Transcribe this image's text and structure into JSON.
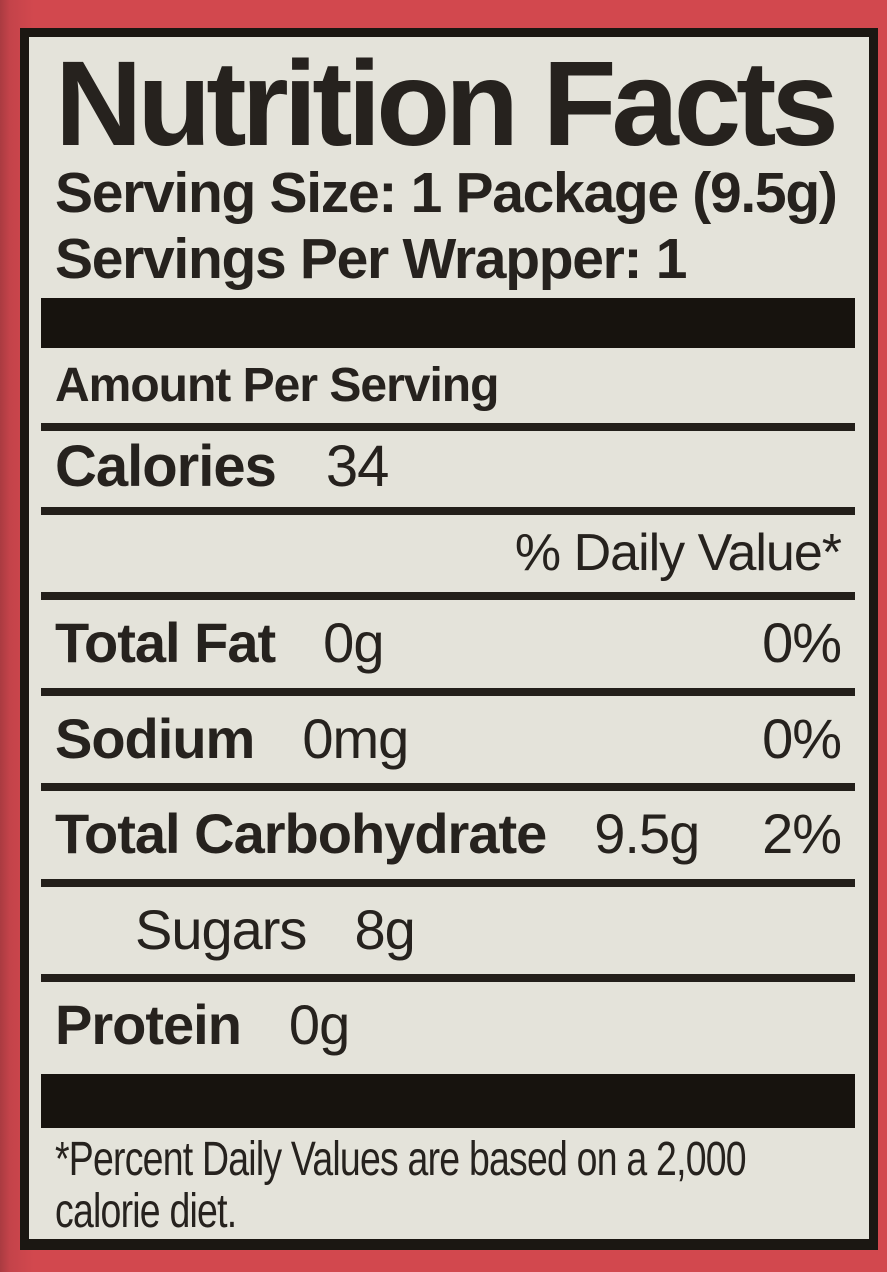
{
  "colors": {
    "package_background": "#d2484e",
    "label_background": "#e4e3da",
    "ink": "#26221e",
    "border": "#1b1712"
  },
  "label": {
    "title": "Nutrition Facts",
    "serving_size": "Serving Size: 1 Package (9.5g)",
    "servings_per": "Servings Per Wrapper: 1",
    "amount_per_serving": "Amount Per Serving",
    "calories_label": "Calories",
    "calories_value": "34",
    "daily_value_header": "% Daily Value*",
    "rows": [
      {
        "name": "Total Fat",
        "amount": "0g",
        "dv": "0%"
      },
      {
        "name": "Sodium",
        "amount": "0mg",
        "dv": "0%"
      },
      {
        "name": "Total Carbohydrate",
        "amount": "9.5g",
        "dv": "2%"
      },
      {
        "name": "Sugars",
        "amount": "8g",
        "dv": ""
      },
      {
        "name": "Protein",
        "amount": "0g",
        "dv": ""
      }
    ],
    "footnote_line1": "*Percent Daily Values are based on a 2,000",
    "footnote_line2": "calorie diet."
  }
}
